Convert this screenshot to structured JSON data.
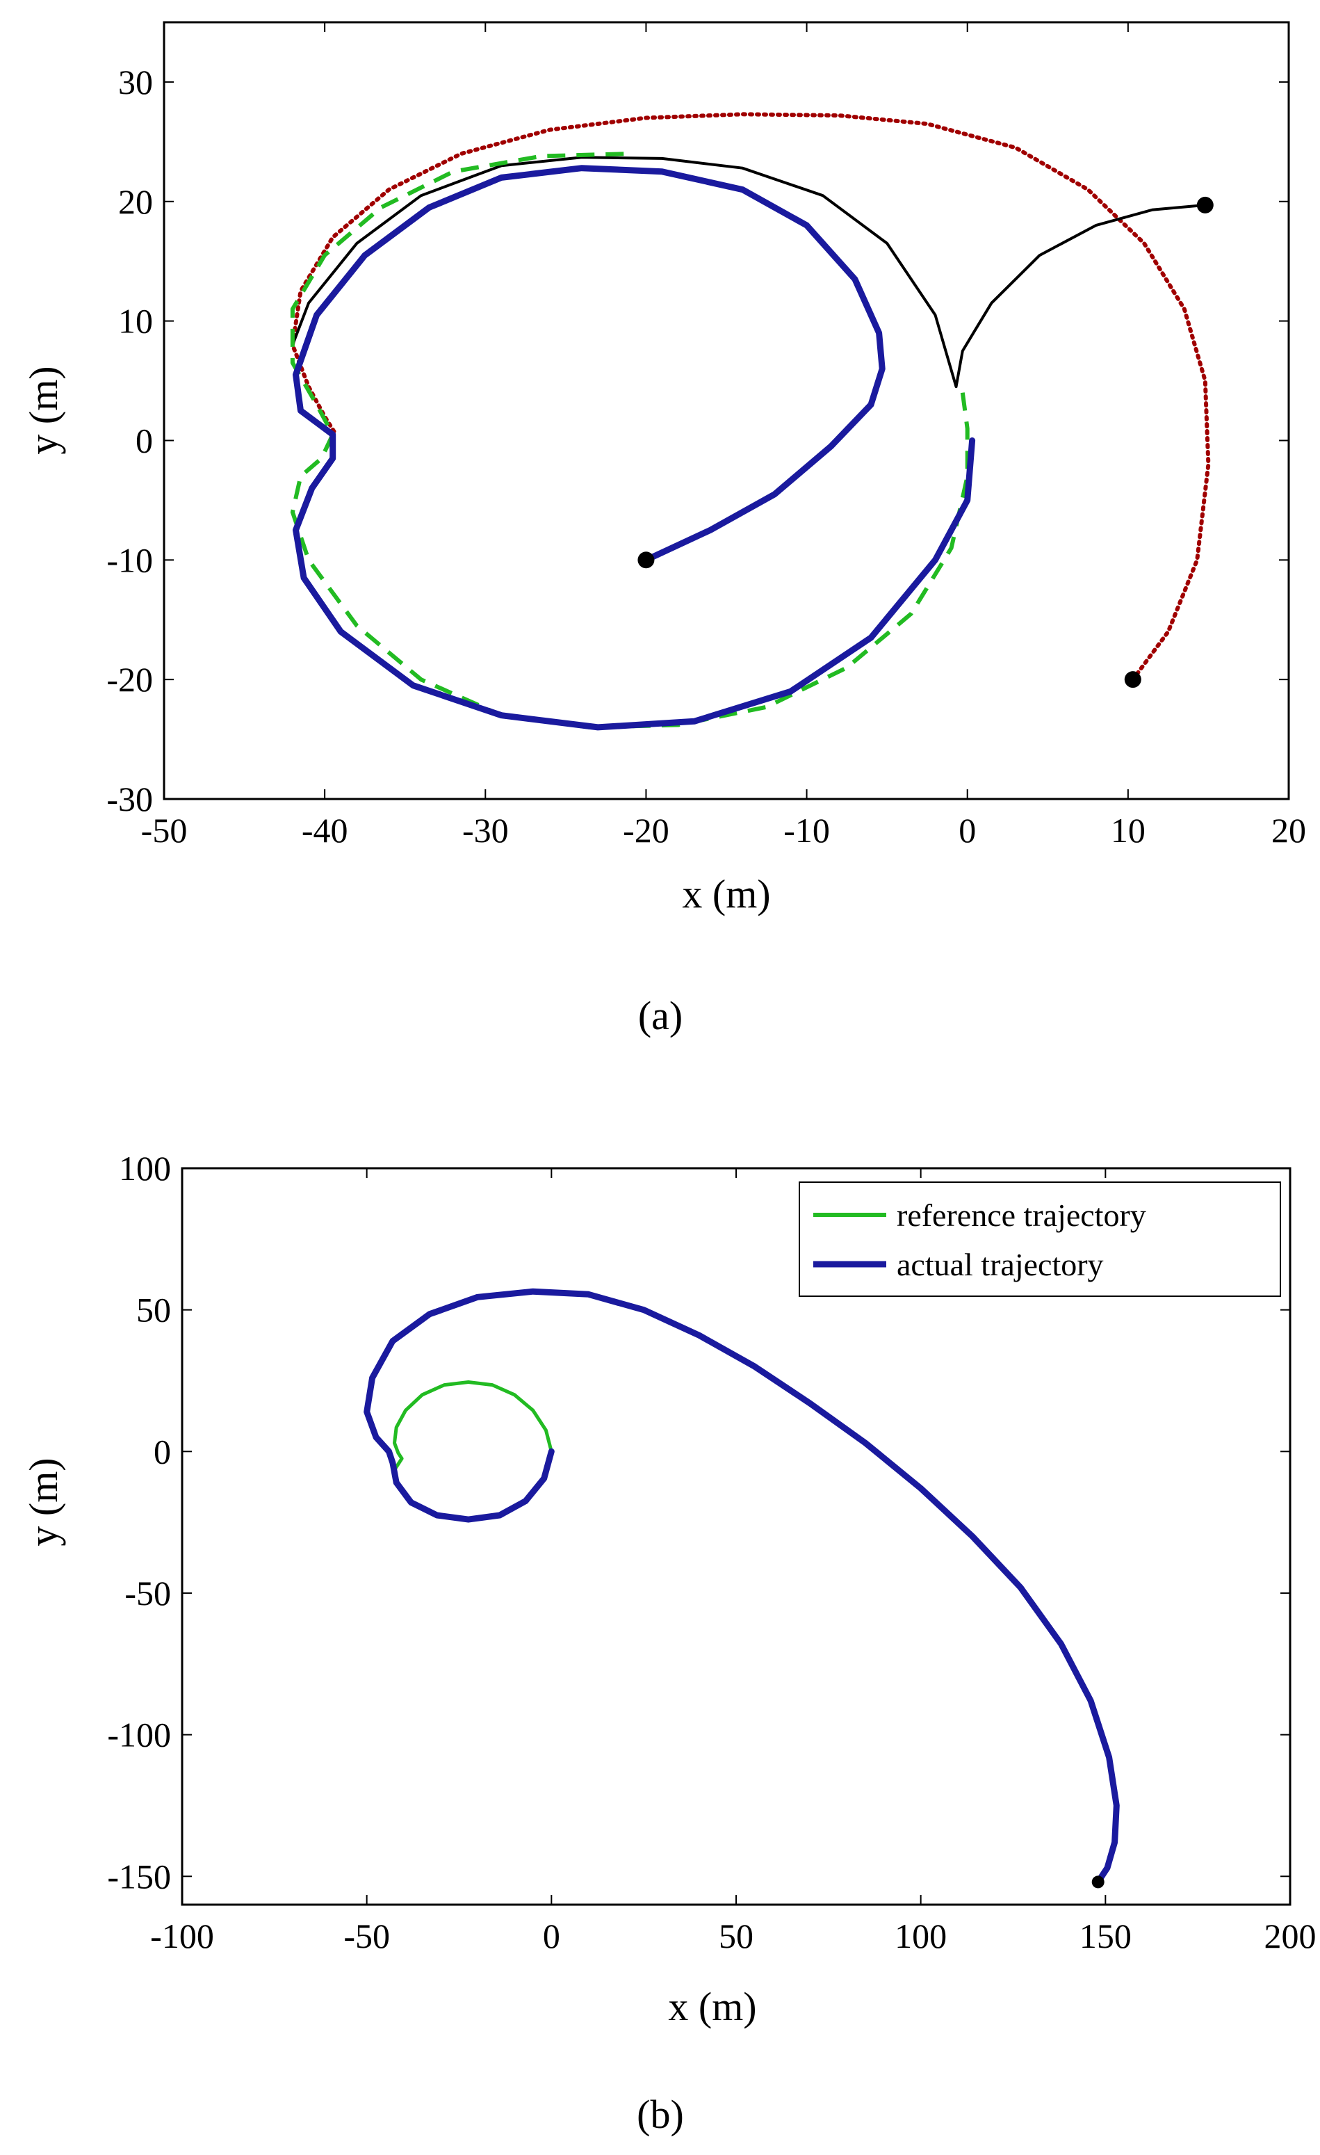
{
  "chart_data": [
    {
      "type": "line",
      "panel": "a",
      "xlabel": "x (m)",
      "ylabel": "y (m)",
      "xlim": [
        -50,
        20
      ],
      "ylim": [
        -30,
        35
      ],
      "xticks": [
        -50,
        -40,
        -30,
        -20,
        -10,
        0,
        10,
        20
      ],
      "yticks": [
        -30,
        -20,
        -10,
        0,
        10,
        20,
        30
      ],
      "series": [
        {
          "name": "red dotted trajectory",
          "color": "#a00000",
          "style": "dotted",
          "x": [
            10.3,
            12.5,
            14.3,
            15.0,
            14.8,
            13.5,
            11.0,
            7.5,
            3.0,
            -2.5,
            -8.0,
            -14.0,
            -20.0,
            -26.0,
            -31.5,
            -36.0,
            -39.5,
            -41.5,
            -42.0,
            -41.0,
            -40.0,
            -39.3
          ],
          "y": [
            -20.0,
            -16.0,
            -10.0,
            -2.0,
            5.0,
            11.0,
            16.5,
            21.0,
            24.5,
            26.5,
            27.2,
            27.3,
            27.0,
            26.0,
            24.0,
            21.0,
            17.0,
            12.5,
            8.0,
            4.5,
            2.0,
            0.5
          ]
        },
        {
          "name": "black solid trajectory",
          "color": "#000000",
          "style": "solid",
          "x": [
            14.8,
            11.5,
            8.0,
            4.5,
            1.5,
            -0.3,
            -0.7,
            -2.0,
            -5.0,
            -9.0,
            -14.0,
            -19.0,
            -24.0,
            -29.0,
            -34.0,
            -38.0,
            -41.0,
            -42.0
          ],
          "y": [
            19.7,
            19.3,
            18.0,
            15.5,
            11.5,
            7.5,
            4.5,
            10.5,
            16.5,
            20.5,
            22.8,
            23.6,
            23.7,
            23.0,
            20.5,
            16.5,
            11.5,
            8.0
          ]
        },
        {
          "name": "green dashed trajectory",
          "color": "#22bb22",
          "style": "dashed",
          "x": [
            -0.3,
            0.0,
            0.0,
            -1.0,
            -3.5,
            -7.5,
            -12.5,
            -18.0,
            -23.5,
            -29.0,
            -34.0,
            -38.0,
            -41.0,
            -42.0,
            -41.5,
            -40.2,
            -39.5,
            -40.5,
            -42.0,
            -42.0,
            -40.0,
            -36.5,
            -32.0,
            -26.5,
            -21.0
          ],
          "y": [
            4.0,
            1.0,
            -3.0,
            -9.0,
            -14.5,
            -19.0,
            -22.3,
            -23.8,
            -24.0,
            -23.0,
            -20.0,
            -15.5,
            -10.0,
            -6.0,
            -3.0,
            -1.5,
            0.5,
            3.0,
            6.5,
            11.0,
            15.5,
            19.5,
            22.5,
            23.8,
            24.0
          ]
        },
        {
          "name": "blue solid trajectory",
          "color": "#1a1a9e",
          "style": "solid",
          "x": [
            -20.0,
            -16.0,
            -12.0,
            -8.5,
            -6.0,
            -5.3,
            -5.5,
            -7.0,
            -10.0,
            -14.0,
            -19.0,
            -24.0,
            -29.0,
            -33.5,
            -37.5,
            -40.5,
            -41.8,
            -41.5,
            -40.5,
            -39.5,
            -39.5,
            -40.8,
            -41.8,
            -41.3,
            -39.0,
            -34.5,
            -29.0,
            -23.0,
            -17.0,
            -11.0,
            -6.0,
            -2.0,
            0.0,
            0.3
          ],
          "y": [
            -10.0,
            -7.5,
            -4.5,
            -0.5,
            3.0,
            6.0,
            9.0,
            13.5,
            18.0,
            21.0,
            22.5,
            22.8,
            22.0,
            19.5,
            15.5,
            10.5,
            5.5,
            2.5,
            1.5,
            0.5,
            -1.5,
            -4.0,
            -7.5,
            -11.5,
            -16.0,
            -20.5,
            -23.0,
            -24.0,
            -23.5,
            -21.0,
            -16.5,
            -10.0,
            -5.0,
            0.0
          ]
        }
      ],
      "markers": [
        {
          "x": 14.8,
          "y": 19.7
        },
        {
          "x": 10.3,
          "y": -20.0
        },
        {
          "x": -20.0,
          "y": -10.0
        }
      ],
      "panel_label": "(a)"
    },
    {
      "type": "line",
      "panel": "b",
      "xlabel": "x (m)",
      "ylabel": "y (m)",
      "xlim": [
        -100,
        200
      ],
      "ylim": [
        -160,
        100
      ],
      "xticks": [
        -100,
        -50,
        0,
        50,
        100,
        150,
        200
      ],
      "yticks": [
        -150,
        -100,
        -50,
        0,
        50,
        100
      ],
      "legend_position": "top-right",
      "series": [
        {
          "name": "reference trajectory",
          "color": "#22bb22",
          "style": "solid",
          "x": [
            0.0,
            -1.5,
            -5.0,
            -10.0,
            -16.0,
            -22.5,
            -29.0,
            -35.0,
            -39.5,
            -42.0,
            -42.5,
            -41.5,
            -40.5,
            -41.5,
            -42.5
          ],
          "y": [
            0.0,
            7.5,
            14.5,
            20.0,
            23.5,
            24.5,
            23.5,
            20.0,
            14.5,
            8.5,
            3.0,
            -0.5,
            -2.5,
            -4.5,
            -6.5
          ]
        },
        {
          "name": "actual trajectory",
          "color": "#1a1a9e",
          "style": "solid",
          "x": [
            148.0,
            150.5,
            152.5,
            153.0,
            151.0,
            146.0,
            138.0,
            127.0,
            114.0,
            100.0,
            85.0,
            70.0,
            55.0,
            40.0,
            25.0,
            10.0,
            -5.0,
            -20.0,
            -33.0,
            -43.0,
            -48.5,
            -50.0,
            -47.5,
            -44.0,
            -43.0,
            -42.0,
            -38.0,
            -31.0,
            -22.5,
            -14.0,
            -7.0,
            -2.0,
            0.0
          ],
          "y": [
            -152.0,
            -147.0,
            -138.0,
            -125.0,
            -108.0,
            -88.0,
            -68.0,
            -48.0,
            -30.0,
            -13.0,
            3.0,
            17.0,
            30.0,
            41.0,
            50.0,
            55.5,
            56.5,
            54.5,
            48.5,
            39.0,
            26.0,
            14.0,
            5.0,
            0.0,
            -4.0,
            -11.0,
            -18.0,
            -22.5,
            -24.0,
            -22.5,
            -17.5,
            -9.5,
            0.0
          ]
        }
      ],
      "markers": [
        {
          "x": 148.0,
          "y": -152.0
        }
      ],
      "panel_label": "(b)"
    }
  ]
}
